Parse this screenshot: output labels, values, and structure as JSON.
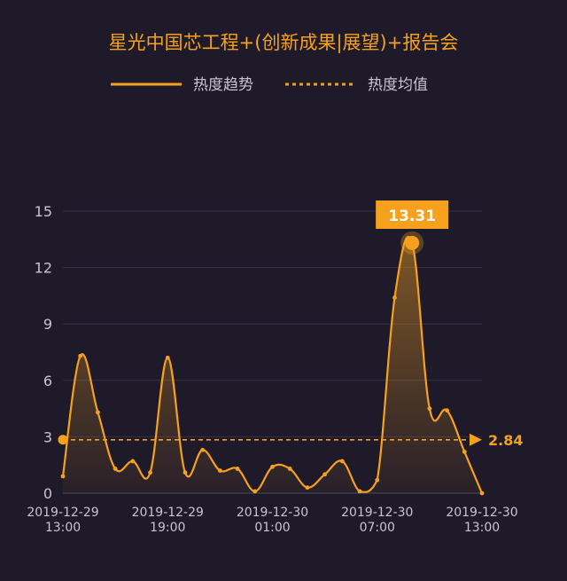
{
  "chart_data": {
    "type": "line",
    "title": "星光中国芯工程+(创新成果|展望)+报告会",
    "legend": {
      "placement": "top-center",
      "items": [
        {
          "label": "热度趋势",
          "style": "solid"
        },
        {
          "label": "热度均值",
          "style": "dashed"
        }
      ]
    },
    "y_ticks": [
      "0",
      "3",
      "6",
      "9",
      "12",
      "15"
    ],
    "ylim": [
      0,
      15
    ],
    "x_ticks": [
      {
        "line1": "2019-12-29",
        "line2": "13:00",
        "x": 0
      },
      {
        "line1": "2019-12-29",
        "line2": "19:00",
        "x": 6
      },
      {
        "line1": "2019-12-30",
        "line2": "01:00",
        "x": 12
      },
      {
        "line1": "2019-12-30",
        "line2": "07:00",
        "x": 18
      },
      {
        "line1": "2019-12-30",
        "line2": "13:00",
        "x": 24
      }
    ],
    "xlim": [
      0,
      24
    ],
    "x_unit": "hours after 2019-12-29 13:00",
    "grid": true,
    "series": [
      {
        "name": "热度趋势",
        "color": "#f5a11e",
        "x": [
          0,
          1,
          2,
          3,
          4,
          5,
          6,
          7,
          8,
          9,
          10,
          11,
          12,
          13,
          14,
          15,
          16,
          17,
          18,
          19,
          20,
          21,
          22,
          23,
          24
        ],
        "values": [
          0.9,
          7.3,
          4.3,
          1.3,
          1.7,
          1.1,
          7.2,
          1.1,
          2.3,
          1.2,
          1.3,
          0.1,
          1.4,
          1.3,
          0.3,
          1.0,
          1.7,
          0.1,
          0.7,
          10.4,
          13.31,
          4.5,
          4.4,
          2.2,
          0.0
        ]
      }
    ],
    "mean": {
      "name": "热度均值",
      "value": 2.84,
      "label": "2.84"
    },
    "peak": {
      "label": "13.31",
      "value": 13.31,
      "x": 20
    },
    "colors": {
      "accent": "#f5a11e",
      "background": "#1e1a2a",
      "grid": "#34304a",
      "axis_text": "#c8c4d4"
    }
  }
}
